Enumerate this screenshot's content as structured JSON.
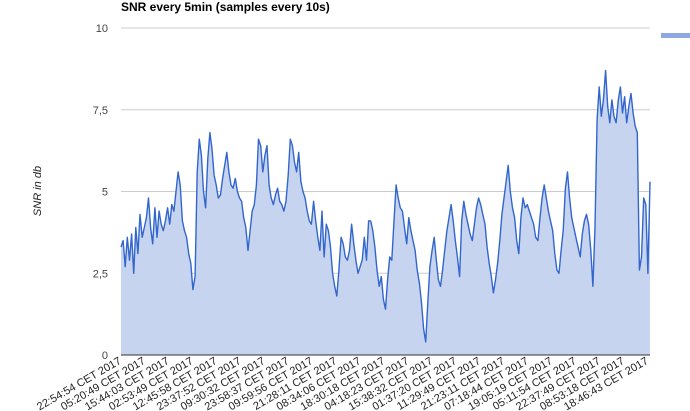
{
  "chart_data": {
    "type": "area",
    "title": "SNR every 5min (samples every 10s)",
    "xlabel": "",
    "ylabel": "SNR in db",
    "ylim": [
      0,
      10
    ],
    "yticks": [
      {
        "value": 0,
        "label": "0"
      },
      {
        "value": 2.5,
        "label": "2,5"
      },
      {
        "value": 5,
        "label": "5"
      },
      {
        "value": 7.5,
        "label": "7,5"
      },
      {
        "value": 10,
        "label": "10"
      }
    ],
    "grid": true,
    "legend": "top-right",
    "colors": {
      "line": "#3366cc",
      "fill": "#c6d4f0",
      "legend": "#8fa9e0"
    },
    "x_tick_labels": [
      "22:54:54 CET 2017",
      "05:20:49 CET 2017",
      "15:44:03 CET 2017",
      "02:53:49 CET 2017",
      "12:45:58 CET 2017",
      "23:37:52 CET 2017",
      "09:30:32 CET 2017",
      "23:58:37 CET 2017",
      "09:59:56 CET 2017",
      "21:28:11 CET 2017",
      "08:34:06 CET 2017",
      "18:30:18 CET 2017",
      "04:18:23 CET 2017",
      "15:38:32 CET 2017",
      "01:37:20 CET 2017",
      "11:29:49 CET 2017",
      "21:23:11 CET 2017",
      "07:18:44 CET 2017",
      "19:05:19 CET 2017",
      "05:11:54 CET 2017",
      "22:37:49 CET 2017",
      "08:53:18 CET 2017",
      "18:46:43 CET 2017"
    ],
    "series": [
      {
        "values": [
          3.3,
          3.5,
          2.7,
          3.6,
          2.9,
          3.7,
          2.5,
          3.9,
          3.1,
          4.3,
          3.6,
          3.9,
          4.2,
          4.8,
          3.9,
          3.4,
          4.5,
          3.6,
          4.4,
          4.0,
          3.8,
          4.1,
          4.5,
          4.0,
          4.6,
          4.4,
          5.0,
          5.6,
          5.2,
          4.1,
          3.8,
          3.6,
          3.1,
          2.8,
          2.0,
          2.4,
          5.6,
          6.6,
          6.1,
          5.0,
          4.5,
          6.0,
          6.8,
          6.3,
          5.5,
          5.2,
          4.8,
          4.9,
          5.4,
          5.8,
          6.2,
          5.6,
          5.2,
          5.1,
          5.4,
          5.0,
          4.8,
          4.7,
          4.2,
          3.9,
          3.2,
          3.8,
          4.4,
          4.6,
          5.2,
          6.6,
          6.4,
          5.6,
          6.1,
          6.4,
          5.2,
          4.8,
          4.6,
          4.9,
          5.1,
          4.7,
          4.6,
          4.4,
          4.7,
          5.5,
          6.6,
          6.4,
          5.9,
          5.6,
          6.2,
          5.3,
          5.0,
          4.8,
          4.4,
          4.1,
          4.0,
          4.7,
          4.1,
          3.6,
          3.2,
          4.4,
          3.0,
          4.0,
          3.8,
          3.3,
          2.5,
          2.1,
          1.8,
          2.6,
          3.6,
          3.4,
          3.0,
          2.9,
          3.2,
          4.0,
          3.4,
          2.9,
          2.5,
          2.7,
          2.9,
          3.6,
          2.9,
          4.1,
          4.1,
          3.8,
          3.3,
          2.6,
          2.1,
          2.4,
          1.7,
          1.4,
          2.3,
          3.0,
          2.9,
          4.1,
          5.2,
          4.8,
          4.5,
          4.4,
          3.9,
          3.4,
          4.2,
          3.8,
          3.5,
          3.2,
          2.6,
          2.2,
          1.6,
          0.8,
          0.4,
          1.6,
          2.7,
          3.2,
          3.6,
          2.9,
          2.3,
          2.1,
          2.6,
          3.2,
          3.8,
          4.2,
          4.6,
          4.1,
          3.5,
          3.0,
          2.4,
          4.1,
          4.7,
          4.3,
          4.0,
          3.7,
          3.5,
          4.0,
          4.5,
          4.8,
          4.6,
          4.3,
          4.0,
          3.3,
          2.8,
          2.4,
          1.9,
          2.3,
          2.8,
          3.5,
          4.3,
          4.8,
          5.3,
          5.8,
          5.0,
          4.5,
          4.2,
          3.5,
          3.1,
          4.2,
          4.8,
          4.5,
          4.6,
          4.4,
          4.2,
          4.0,
          3.6,
          3.5,
          4.2,
          4.8,
          5.2,
          4.8,
          4.4,
          4.1,
          3.8,
          3.1,
          2.6,
          2.5,
          3.2,
          3.8,
          5.1,
          5.6,
          4.8,
          4.2,
          3.9,
          3.6,
          3.3,
          3.0,
          3.7,
          4.1,
          4.3,
          4.0,
          3.2,
          2.1,
          3.9,
          7.2,
          8.2,
          7.3,
          7.8,
          8.7,
          7.6,
          7.1,
          7.8,
          7.3,
          7.1,
          7.8,
          8.2,
          7.4,
          7.9,
          7.1,
          7.6,
          8.0,
          7.4,
          7.0,
          6.8,
          2.6,
          3.0,
          4.8,
          4.6,
          2.5,
          5.3
        ]
      }
    ]
  }
}
